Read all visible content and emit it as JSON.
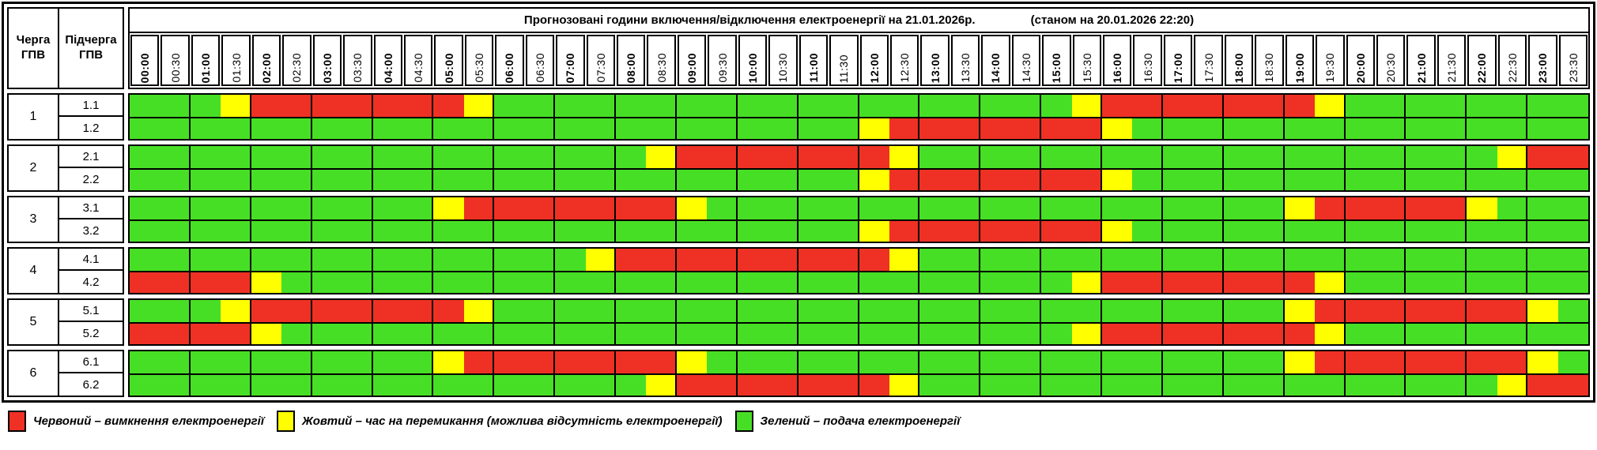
{
  "chart_data": {
    "type": "heatmap",
    "title": "Прогнозовані години включення/відключення електроенергії на 21.01.2026р.",
    "status": "(станом на 20.01.2026 22:20)",
    "queue_header": "Черга\nГПВ",
    "subqueue_header": "Підчерга\nГПВ",
    "x_labels": [
      "00:00",
      "00:30",
      "01:00",
      "01:30",
      "02:00",
      "02:30",
      "03:00",
      "03:30",
      "04:00",
      "04:30",
      "05:00",
      "05:30",
      "06:00",
      "06:30",
      "07:00",
      "07:30",
      "08:00",
      "08:30",
      "09:00",
      "09:30",
      "10:00",
      "10:30",
      "11:00",
      "11:30",
      "12:00",
      "12:30",
      "13:00",
      "13:30",
      "14:00",
      "14:30",
      "15:00",
      "15:30",
      "16:00",
      "16:30",
      "17:00",
      "17:30",
      "18:00",
      "18:30",
      "19:00",
      "19:30",
      "20:00",
      "20:30",
      "21:00",
      "21:30",
      "22:00",
      "22:30",
      "23:00",
      "23:30"
    ],
    "cell_colors": {
      "G": "#47DF25",
      "Y": "#FFFF00",
      "R": "#EE3124"
    },
    "cell_meaning": {
      "G": "подача електроенергії",
      "Y": "час на перемикання",
      "R": "вимкнення електроенергії"
    },
    "groups": [
      {
        "queue": "1",
        "rows": [
          {
            "label": "1.1",
            "cells": "GGGYRRRRRRRYGGGGGGGGGGGGGGGGGGGYRRRRRRRYGGGGGGGG"
          },
          {
            "label": "1.2",
            "cells": "GGGGGGGGGGGGGGGGGGGGGGGGYRRRRRRRYGGGGGGGGGGGGGGG"
          }
        ]
      },
      {
        "queue": "2",
        "rows": [
          {
            "label": "2.1",
            "cells": "GGGGGGGGGGGGGGGGGYRRRRRRRYGGGGGGGGGGGGGGGGGGGYRR"
          },
          {
            "label": "2.2",
            "cells": "GGGGGGGGGGGGGGGGGGGGGGGGYRRRRRRRYGGGGGGGGGGGGGGG"
          }
        ]
      },
      {
        "queue": "3",
        "rows": [
          {
            "label": "3.1",
            "cells": "GGGGGGGGGGYRRRRRRRYGGGGGGGGGGGGGGGGGGGYRRRRRYGGG"
          },
          {
            "label": "3.2",
            "cells": "GGGGGGGGGGGGGGGGGGGGGGGGYRRRRRRRYGGGGGGGGGGGGGGG"
          }
        ]
      },
      {
        "queue": "4",
        "rows": [
          {
            "label": "4.1",
            "cells": "GGGGGGGGGGGGGGGYRRRRRRRRRYGGGGGGGGGGGGGGGGGGGGGG"
          },
          {
            "label": "4.2",
            "cells": "RRRRYGGGGGGGGGGGGGGGGGGGGGGGGGGYRRRRRRRYGGGGGGGG"
          }
        ]
      },
      {
        "queue": "5",
        "rows": [
          {
            "label": "5.1",
            "cells": "GGGYRRRRRRRYGGGGGGGGGGGGGGGGGGGGGGGGGGYRRRRRRRYG"
          },
          {
            "label": "5.2",
            "cells": "RRRRYGGGGGGGGGGGGGGGGGGGGGGGGGGYRRRRRRRYGGGGGGGG"
          }
        ]
      },
      {
        "queue": "6",
        "rows": [
          {
            "label": "6.1",
            "cells": "GGGGGGGGGGYRRRRRRRYGGGGGGGGGGGGGGGGGGGYRRRRRRRYG"
          },
          {
            "label": "6.2",
            "cells": "GGGGGGGGGGGGGGGGGYRRRRRRRYGGGGGGGGGGGGGGGGGGGYRR"
          }
        ]
      }
    ],
    "legend": [
      {
        "color": "#EE3124",
        "name": "red-swatch",
        "label": "Червоний – вимкнення електроенергії"
      },
      {
        "color": "#FFFF00",
        "name": "yellow-swatch",
        "label": "Жовтий – час на перемикання (можлива відсутність електроенергії)"
      },
      {
        "color": "#47DF25",
        "name": "green-swatch",
        "label": "Зелений – подача електроенергії"
      }
    ]
  }
}
